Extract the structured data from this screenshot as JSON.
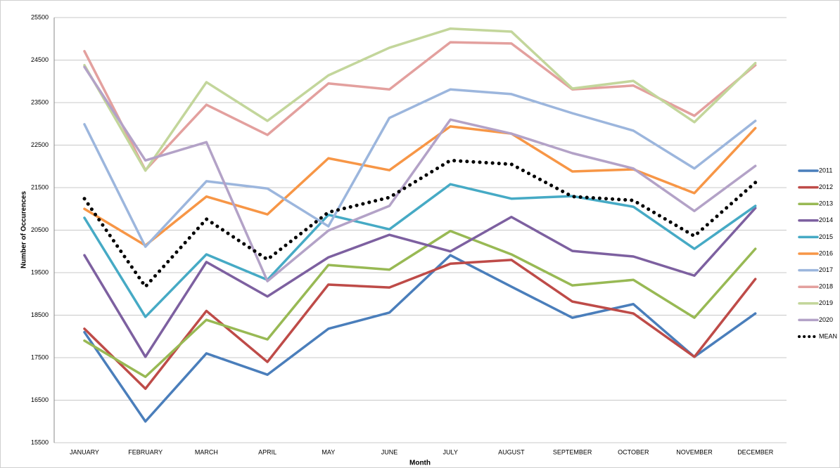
{
  "chart_data": {
    "type": "line",
    "x_label": "Month",
    "y_label": "Number of Occurences",
    "categories": [
      "JANUARY",
      "FEBRUARY",
      "MARCH",
      "APRIL",
      "MAY",
      "JUNE",
      "JULY",
      "AUGUST",
      "SEPTEMBER",
      "OCTOBER",
      "NOVEMBER",
      "DECEMBER"
    ],
    "ylim": [
      15500,
      25500
    ],
    "yticks": [
      15500,
      16500,
      17500,
      18500,
      19500,
      20500,
      21500,
      22500,
      23500,
      24500,
      25500
    ],
    "grid": true,
    "legend_position": "right",
    "series": [
      {
        "name": "2011",
        "color": "#4a7ebb",
        "values": [
          18100,
          16000,
          17600,
          17100,
          18180,
          18560,
          19910,
          19170,
          18440,
          18760,
          17520,
          18540
        ]
      },
      {
        "name": "2012",
        "color": "#be4b48",
        "values": [
          18180,
          16770,
          18600,
          17400,
          19220,
          19150,
          19710,
          19800,
          18820,
          18540,
          17520,
          19350
        ]
      },
      {
        "name": "2013",
        "color": "#98b954",
        "values": [
          17900,
          17050,
          18390,
          17930,
          19680,
          19570,
          20480,
          19930,
          19200,
          19330,
          18440,
          20060
        ]
      },
      {
        "name": "2014",
        "color": "#7d60a0",
        "values": [
          19910,
          17520,
          19750,
          18940,
          19860,
          20390,
          20000,
          20810,
          20010,
          19880,
          19430,
          21020
        ]
      },
      {
        "name": "2015",
        "color": "#46aac5",
        "values": [
          20790,
          18460,
          19930,
          19330,
          20860,
          20520,
          21580,
          21240,
          21300,
          21050,
          20060,
          21070
        ]
      },
      {
        "name": "2016",
        "color": "#f79646",
        "values": [
          21000,
          20140,
          21290,
          20870,
          22190,
          21910,
          22940,
          22770,
          21880,
          21930,
          21370,
          22900
        ]
      },
      {
        "name": "2017",
        "color": "#9cb6dd",
        "values": [
          22990,
          20110,
          21650,
          21480,
          20590,
          23140,
          23810,
          23700,
          23250,
          22840,
          21950,
          23070
        ]
      },
      {
        "name": "2018",
        "color": "#e3a09e",
        "values": [
          24710,
          21910,
          23450,
          22740,
          23950,
          23810,
          24920,
          24890,
          23810,
          23900,
          23190,
          24380
        ]
      },
      {
        "name": "2019",
        "color": "#c3d69b",
        "values": [
          24380,
          21900,
          23980,
          23070,
          24140,
          24790,
          25240,
          25170,
          23830,
          24010,
          23040,
          24430
        ]
      },
      {
        "name": "2020",
        "color": "#b3a2c7",
        "values": [
          24340,
          22140,
          22570,
          19300,
          20490,
          21070,
          23100,
          22770,
          22310,
          21950,
          20950,
          22010
        ]
      },
      {
        "name": "MEAN",
        "color": "#000000",
        "line_style": "dotted",
        "values": [
          21240,
          19170,
          20760,
          19810,
          20920,
          21270,
          22140,
          22050,
          21290,
          21200,
          20360,
          21620
        ]
      }
    ]
  }
}
